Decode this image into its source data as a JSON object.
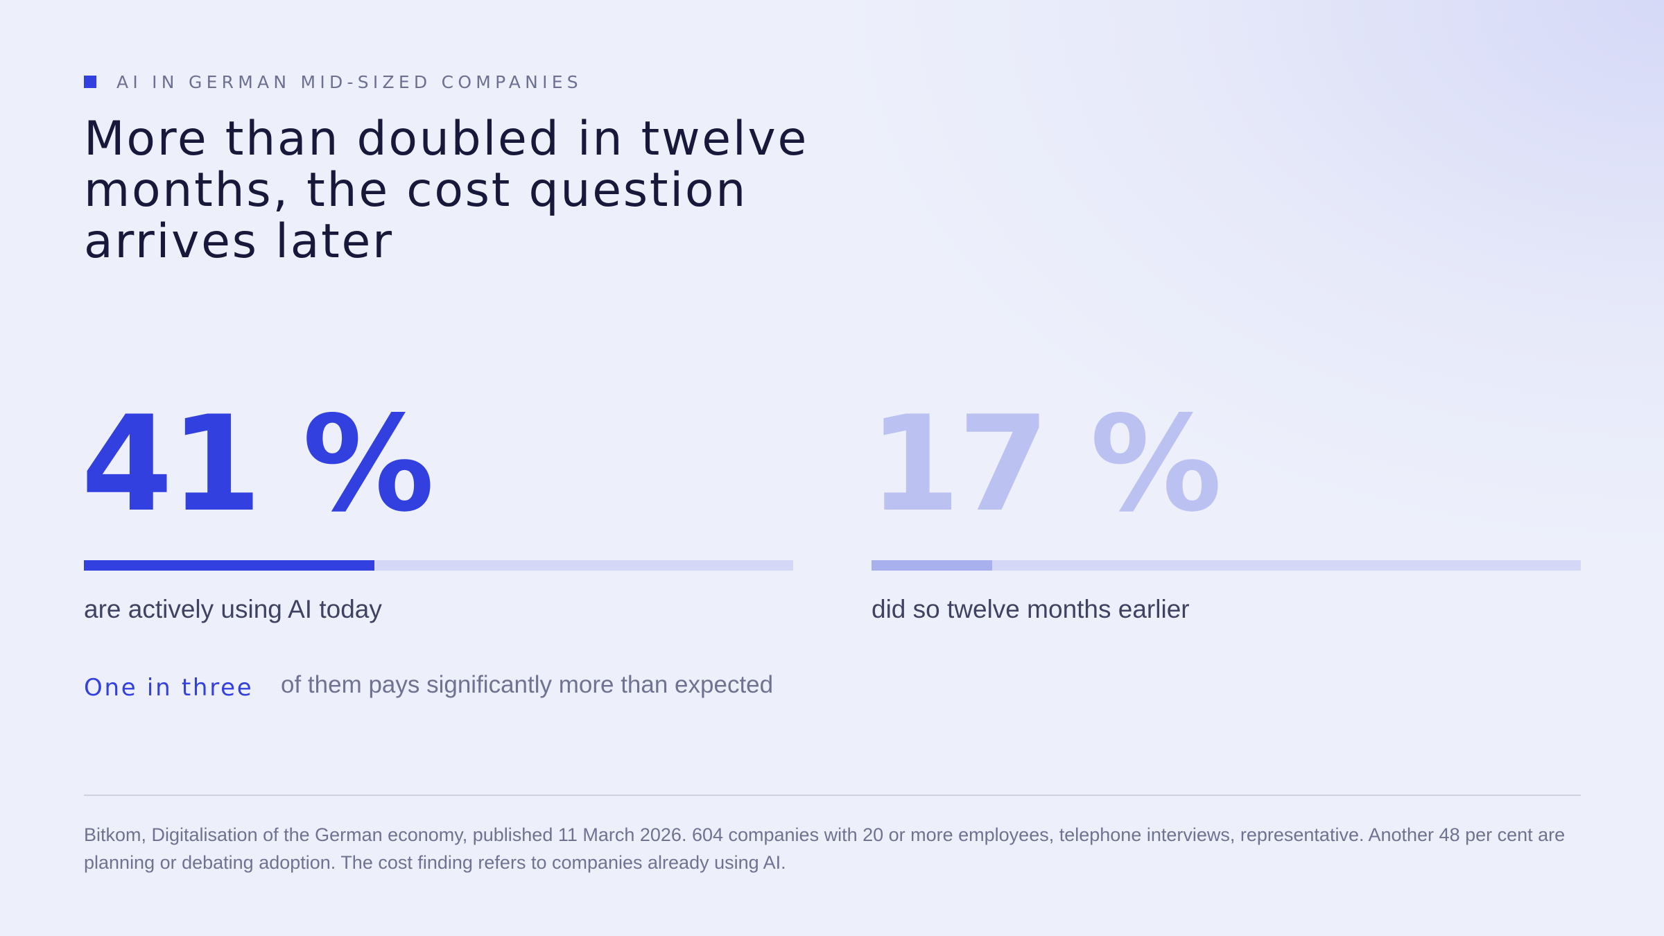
{
  "header": {
    "kicker": "AI IN GERMAN MID-SIZED COMPANIES",
    "title": "More than doubled in twelve months, the cost question arrives later"
  },
  "chart_data": {
    "type": "progress",
    "xlim": [
      0,
      100
    ],
    "series": [
      {
        "name": "are actively using AI today",
        "color": "#3340e0",
        "values": [
          41
        ],
        "value_labels": [
          "41 %"
        ]
      },
      {
        "name": "did so twelve months earlier",
        "color": "#a9b0ee",
        "values": [
          17
        ],
        "value_labels": [
          "17 %"
        ]
      }
    ]
  },
  "note": {
    "highlight": "One in three",
    "text": "of them pays significantly more than expected"
  },
  "source": "Bitkom, Digitalisation of the German economy, published 11 March 2026. 604 companies with 20 or more employees, telephone interviews, representative. Another 48 per cent are planning or debating adoption. The cost finding refers to companies already using AI."
}
